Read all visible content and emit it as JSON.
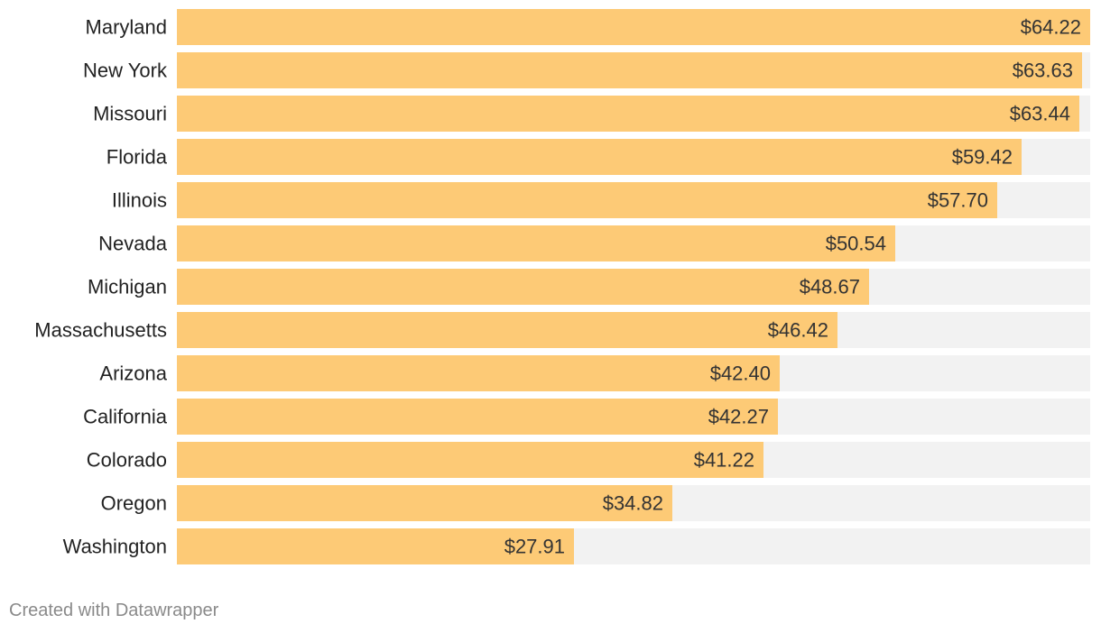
{
  "chart_data": {
    "type": "bar",
    "orientation": "horizontal",
    "categories": [
      "Maryland",
      "New York",
      "Missouri",
      "Florida",
      "Illinois",
      "Nevada",
      "Michigan",
      "Massachusetts",
      "Arizona",
      "California",
      "Colorado",
      "Oregon",
      "Washington"
    ],
    "values": [
      64.22,
      63.63,
      63.44,
      59.42,
      57.7,
      50.54,
      48.67,
      46.42,
      42.4,
      42.27,
      41.22,
      34.82,
      27.91
    ],
    "value_labels": [
      "$64.22",
      "$63.63",
      "$63.44",
      "$59.42",
      "$57.70",
      "$50.54",
      "$48.67",
      "$46.42",
      "$42.40",
      "$42.27",
      "$41.22",
      "$34.82",
      "$27.91"
    ],
    "xlim": [
      0,
      64.22
    ],
    "title": "",
    "xlabel": "",
    "ylabel": "",
    "grid": false,
    "bar_color": "#fdca76",
    "background_track_color": "#f2f2f2"
  },
  "footer": {
    "credit": "Created with Datawrapper"
  }
}
